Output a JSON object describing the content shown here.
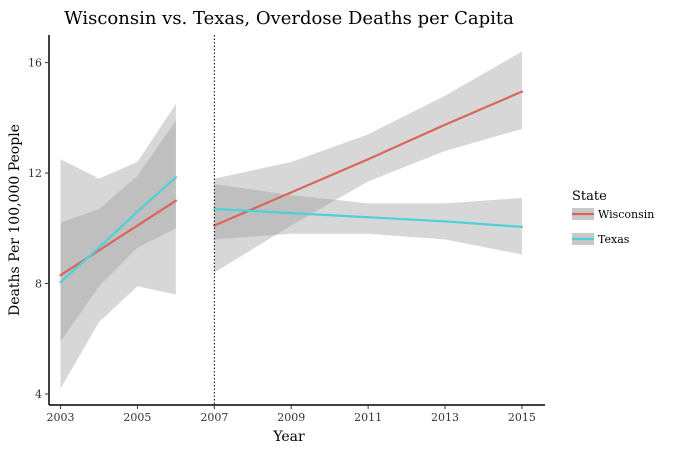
{
  "chart_data": {
    "type": "line",
    "title": "Wisconsin vs. Texas, Overdose Deaths per Capita",
    "xlabel": "Year",
    "ylabel": "Deaths Per 100,000 People",
    "xlim": [
      2002.7,
      2015.6
    ],
    "ylim": [
      3.6,
      17.0
    ],
    "x_ticks": [
      2003,
      2005,
      2007,
      2009,
      2011,
      2013,
      2015
    ],
    "y_ticks": [
      4,
      8,
      12,
      16
    ],
    "grid": false,
    "legend_title": "State",
    "legend_position": "right",
    "policy_line_x": 2007,
    "series": [
      {
        "name": "Wisconsin",
        "color": "#d9665c",
        "segments": [
          {
            "x": [
              2003,
              2004,
              2005,
              2006
            ],
            "y": [
              8.3,
              9.2,
              10.1,
              11.0
            ],
            "ci_upper": [
              10.2,
              10.7,
              11.9,
              13.9
            ],
            "ci_lower": [
              5.9,
              7.9,
              9.3,
              10.0
            ]
          },
          {
            "x": [
              2007,
              2009,
              2011,
              2013,
              2015
            ],
            "y": [
              10.1,
              11.3,
              12.5,
              13.75,
              14.95
            ],
            "ci_upper": [
              11.8,
              12.4,
              13.4,
              14.8,
              16.4
            ],
            "ci_lower": [
              8.4,
              10.1,
              11.7,
              12.8,
              13.6
            ]
          }
        ]
      },
      {
        "name": "Texas",
        "color": "#4fd0d8",
        "segments": [
          {
            "x": [
              2003,
              2004,
              2005,
              2006
            ],
            "y": [
              8.05,
              9.3,
              10.6,
              11.85
            ],
            "ci_upper": [
              12.5,
              11.8,
              12.4,
              14.5
            ],
            "ci_lower": [
              4.2,
              6.6,
              7.9,
              7.6
            ]
          },
          {
            "x": [
              2007,
              2009,
              2011,
              2013,
              2015
            ],
            "y": [
              10.7,
              10.55,
              10.4,
              10.25,
              10.05
            ],
            "ci_upper": [
              11.6,
              11.2,
              10.9,
              10.9,
              11.1
            ],
            "ci_lower": [
              9.6,
              9.8,
              9.8,
              9.6,
              9.05
            ]
          }
        ]
      }
    ]
  },
  "ribbon_color": "#9a9a9a",
  "axis_color": "#000000"
}
